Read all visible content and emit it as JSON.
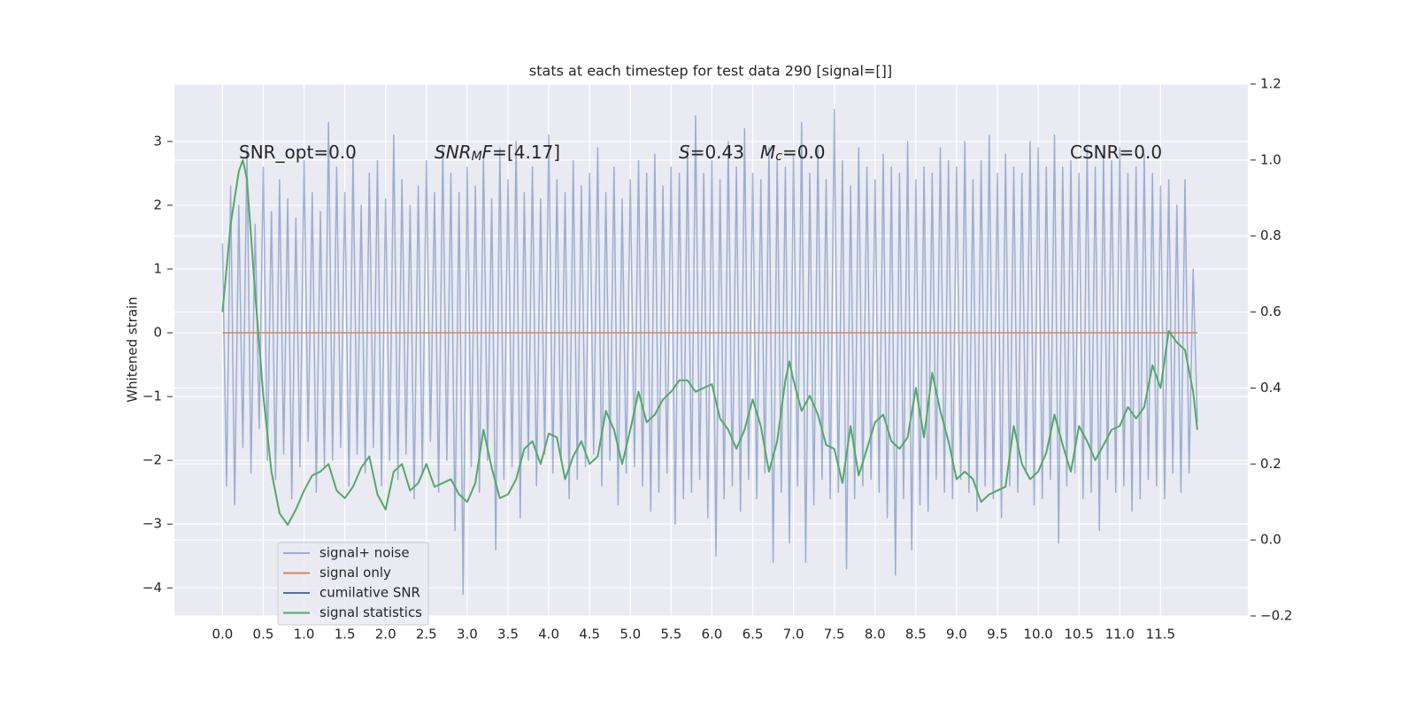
{
  "chart_data": {
    "type": "line",
    "title": "stats at each timestep for test data 290 [signal=[]]",
    "ylabel": "Whitened strain",
    "grid": true,
    "legend": "lower left",
    "xlim": [
      -0.59,
      12.57
    ],
    "ylim": [
      -4.44,
      3.9
    ],
    "y2lim": [
      -0.2,
      1.2
    ],
    "xticks": [
      {
        "value": 0,
        "label": "0.0"
      },
      {
        "value": 0.5,
        "label": "0.5"
      },
      {
        "value": 1,
        "label": "1.0"
      },
      {
        "value": 1.5,
        "label": "1.5"
      },
      {
        "value": 2,
        "label": "2.0"
      },
      {
        "value": 2.5,
        "label": "2.5"
      },
      {
        "value": 3,
        "label": "3.0"
      },
      {
        "value": 3.5,
        "label": "3.5"
      },
      {
        "value": 4,
        "label": "4.0"
      },
      {
        "value": 4.5,
        "label": "4.5"
      },
      {
        "value": 5,
        "label": "5.0"
      },
      {
        "value": 5.5,
        "label": "5.5"
      },
      {
        "value": 6,
        "label": "6.0"
      },
      {
        "value": 6.5,
        "label": "6.5"
      },
      {
        "value": 7,
        "label": "7.0"
      },
      {
        "value": 7.5,
        "label": "7.5"
      },
      {
        "value": 8,
        "label": "8.0"
      },
      {
        "value": 8.5,
        "label": "8.5"
      },
      {
        "value": 9,
        "label": "9.0"
      },
      {
        "value": 9.5,
        "label": "9.5"
      },
      {
        "value": 10,
        "label": "10.0"
      },
      {
        "value": 10.5,
        "label": "10.5"
      },
      {
        "value": 11,
        "label": "11.0"
      },
      {
        "value": 11.5,
        "label": "11.5"
      }
    ],
    "yticks": [
      {
        "value": -4,
        "label": "−4"
      },
      {
        "value": -3,
        "label": "−3"
      },
      {
        "value": -2,
        "label": "−2"
      },
      {
        "value": -1,
        "label": "−1"
      },
      0,
      1,
      2,
      3
    ],
    "y2ticks": [
      {
        "value": -0.2,
        "label": "−0.2"
      },
      {
        "value": 0,
        "label": "0.0"
      },
      {
        "value": 0.2,
        "label": "0.2"
      },
      {
        "value": 0.4,
        "label": "0.4"
      },
      {
        "value": 0.6,
        "label": "0.6"
      },
      {
        "value": 0.8,
        "label": "0.8"
      },
      {
        "value": 1,
        "label": "1.0"
      },
      {
        "value": 1.2,
        "label": "1.2"
      }
    ],
    "annotations": [
      [
        {
          "text": "SNR_opt=0.0",
          "style": "normal"
        }
      ],
      [
        {
          "text": "SNR",
          "style": "italic"
        },
        {
          "text": "M",
          "style": "italic-sub"
        },
        {
          "text": "F",
          "style": "italic"
        },
        {
          "text": "=[4.17]",
          "style": "normal"
        }
      ],
      [
        {
          "text": "S",
          "style": "italic"
        },
        {
          "text": "=0.43",
          "style": "normal"
        }
      ],
      [
        {
          "text": "M",
          "style": "italic"
        },
        {
          "text": "c",
          "style": "italic-sub"
        },
        {
          "text": "=0.0",
          "style": "normal"
        }
      ],
      [
        {
          "text": "CSNR=0.0",
          "style": "normal"
        }
      ]
    ],
    "series": [
      {
        "name": "signal+ noise",
        "color": "#4c72b0",
        "alpha": 0.5,
        "x": [
          0,
          0.05,
          0.1,
          0.15,
          0.2,
          0.25,
          0.3,
          0.35,
          0.4,
          0.45,
          0.5,
          0.55,
          0.6,
          0.65,
          0.7,
          0.75,
          0.8,
          0.85,
          0.9,
          0.95,
          1,
          1.05,
          1.1,
          1.15,
          1.2,
          1.25,
          1.3,
          1.35,
          1.4,
          1.45,
          1.5,
          1.55,
          1.6,
          1.65,
          1.7,
          1.75,
          1.8,
          1.85,
          1.9,
          1.95,
          2,
          2.05,
          2.1,
          2.15,
          2.2,
          2.25,
          2.3,
          2.35,
          2.4,
          2.45,
          2.5,
          2.55,
          2.6,
          2.65,
          2.7,
          2.75,
          2.8,
          2.85,
          2.9,
          2.95,
          3,
          3.05,
          3.1,
          3.15,
          3.2,
          3.25,
          3.3,
          3.35,
          3.4,
          3.45,
          3.5,
          3.55,
          3.6,
          3.65,
          3.7,
          3.75,
          3.8,
          3.85,
          3.9,
          3.95,
          4,
          4.05,
          4.1,
          4.15,
          4.2,
          4.25,
          4.3,
          4.35,
          4.4,
          4.45,
          4.5,
          4.55,
          4.6,
          4.65,
          4.7,
          4.75,
          4.8,
          4.85,
          4.9,
          4.95,
          5,
          5.05,
          5.1,
          5.15,
          5.2,
          5.25,
          5.3,
          5.35,
          5.4,
          5.45,
          5.5,
          5.55,
          5.6,
          5.65,
          5.7,
          5.75,
          5.8,
          5.85,
          5.9,
          5.95,
          6,
          6.05,
          6.1,
          6.15,
          6.2,
          6.25,
          6.3,
          6.35,
          6.4,
          6.45,
          6.5,
          6.55,
          6.6,
          6.65,
          6.7,
          6.75,
          6.8,
          6.85,
          6.9,
          6.95,
          7,
          7.05,
          7.1,
          7.15,
          7.2,
          7.25,
          7.3,
          7.35,
          7.4,
          7.45,
          7.5,
          7.55,
          7.6,
          7.65,
          7.7,
          7.75,
          7.8,
          7.85,
          7.9,
          7.95,
          8,
          8.05,
          8.1,
          8.15,
          8.2,
          8.25,
          8.3,
          8.35,
          8.4,
          8.45,
          8.5,
          8.55,
          8.6,
          8.65,
          8.7,
          8.75,
          8.8,
          8.85,
          8.9,
          8.95,
          9,
          9.05,
          9.1,
          9.15,
          9.2,
          9.25,
          9.3,
          9.35,
          9.4,
          9.45,
          9.5,
          9.55,
          9.6,
          9.65,
          9.7,
          9.75,
          9.8,
          9.85,
          9.9,
          9.95,
          10,
          10.05,
          10.1,
          10.15,
          10.2,
          10.25,
          10.3,
          10.35,
          10.4,
          10.45,
          10.5,
          10.55,
          10.6,
          10.65,
          10.7,
          10.75,
          10.8,
          10.85,
          10.9,
          10.95,
          11,
          11.05,
          11.1,
          11.15,
          11.2,
          11.25,
          11.3,
          11.35,
          11.4,
          11.45,
          11.5,
          11.55,
          11.6,
          11.65,
          11.7,
          11.75,
          11.8,
          11.85,
          11.9,
          11.95
        ],
        "values": [
          1.4,
          -2.4,
          2.3,
          -2.7,
          2.0,
          -1.8,
          2.9,
          -2.2,
          1.7,
          -1.5,
          2.6,
          -2.0,
          1.9,
          -2.3,
          2.4,
          -1.9,
          2.1,
          -2.6,
          1.8,
          -2.1,
          2.7,
          -1.7,
          2.2,
          -2.5,
          1.9,
          -2.1,
          3.3,
          -2.0,
          2.6,
          -1.8,
          2.2,
          -2.4,
          2.8,
          -1.9,
          2.0,
          -2.2,
          2.5,
          -1.8,
          2.7,
          -2.4,
          2.1,
          -2.0,
          3.1,
          -2.3,
          2.4,
          -1.9,
          2.0,
          -2.6,
          2.3,
          -2.2,
          2.7,
          -1.7,
          2.2,
          -2.5,
          2.9,
          -2.0,
          2.5,
          -3.1,
          2.2,
          -4.1,
          2.6,
          -2.1,
          2.3,
          -2.5,
          2.8,
          -2.0,
          2.1,
          -3.4,
          2.9,
          -2.3,
          2.4,
          -2.1,
          3.0,
          -2.9,
          2.2,
          -2.0,
          2.6,
          -2.4,
          2.1,
          -1.9,
          3.1,
          -2.2,
          2.4,
          -2.0,
          2.2,
          -2.6,
          2.7,
          -2.3,
          2.3,
          -2.1,
          2.5,
          -1.9,
          2.9,
          -2.4,
          2.2,
          -2.0,
          2.6,
          -2.7,
          2.1,
          -2.2,
          2.4,
          -2.1,
          2.7,
          -2.4,
          2.5,
          -2.8,
          2.8,
          -2.5,
          2.3,
          -2.2,
          2.6,
          -3.0,
          2.5,
          -2.6,
          2.9,
          -2.5,
          3.4,
          -2.3,
          2.5,
          -2.9,
          2.7,
          -3.5,
          2.4,
          -2.6,
          3.0,
          -2.4,
          2.6,
          -2.8,
          3.2,
          -2.3,
          2.5,
          -2.6,
          2.4,
          -2.2,
          2.9,
          -3.6,
          2.7,
          -2.5,
          2.6,
          -3.3,
          2.8,
          -2.4,
          3.3,
          -3.6,
          2.5,
          -2.7,
          2.9,
          -2.3,
          2.4,
          -2.6,
          3.5,
          -2.5,
          2.7,
          -3.7,
          2.3,
          -2.6,
          2.9,
          -2.4,
          2.6,
          -2.3,
          2.4,
          -2.5,
          2.8,
          -2.9,
          2.6,
          -3.8,
          2.5,
          -2.6,
          3.0,
          -3.4,
          2.4,
          -2.7,
          2.6,
          -2.8,
          2.5,
          -2.3,
          2.9,
          -2.5,
          2.7,
          -2.6,
          2.6,
          -2.3,
          3.0,
          -2.5,
          2.4,
          -2.8,
          2.7,
          -2.4,
          3.1,
          -2.6,
          2.5,
          -2.9,
          2.8,
          -2.4,
          2.6,
          -2.5,
          2.5,
          -2.2,
          3.0,
          -2.7,
          2.9,
          -2.6,
          2.6,
          -2.3,
          3.1,
          -3.3,
          2.6,
          -2.4,
          2.7,
          -2.2,
          2.5,
          -2.6,
          2.9,
          -2.5,
          2.6,
          -3.1,
          2.8,
          -2.3,
          2.7,
          -2.5,
          2.9,
          -2.4,
          2.5,
          -2.8,
          2.6,
          -2.6,
          2.8,
          -2.3,
          2.5,
          -2.4,
          2.3,
          -2.6,
          2.4,
          -2.2,
          2.0,
          -2.5,
          2.4,
          -2.2,
          1.0,
          -1.4
        ]
      },
      {
        "name": "signal only",
        "color": "#dd8452",
        "x": [
          0,
          11.95
        ],
        "values": [
          0,
          0
        ]
      },
      {
        "name": "cumilative SNR",
        "color": "#4c72b0",
        "x": [],
        "values": []
      },
      {
        "name": "signal statistics",
        "color": "#55a868",
        "axis": "y2",
        "x": [
          0,
          0.1,
          0.2,
          0.25,
          0.3,
          0.4,
          0.5,
          0.6,
          0.7,
          0.8,
          0.9,
          1,
          1.1,
          1.2,
          1.3,
          1.4,
          1.5,
          1.6,
          1.7,
          1.8,
          1.9,
          2,
          2.1,
          2.2,
          2.3,
          2.4,
          2.5,
          2.6,
          2.7,
          2.8,
          2.9,
          3,
          3.1,
          3.2,
          3.3,
          3.4,
          3.5,
          3.6,
          3.7,
          3.8,
          3.9,
          4,
          4.1,
          4.2,
          4.3,
          4.4,
          4.5,
          4.6,
          4.7,
          4.8,
          4.9,
          5,
          5.1,
          5.2,
          5.3,
          5.4,
          5.5,
          5.6,
          5.7,
          5.8,
          5.9,
          6,
          6.1,
          6.2,
          6.3,
          6.4,
          6.5,
          6.6,
          6.7,
          6.8,
          6.9,
          6.95,
          7,
          7.1,
          7.2,
          7.3,
          7.4,
          7.5,
          7.6,
          7.7,
          7.8,
          7.9,
          8,
          8.1,
          8.2,
          8.3,
          8.4,
          8.5,
          8.6,
          8.7,
          8.8,
          8.9,
          9,
          9.1,
          9.2,
          9.3,
          9.4,
          9.5,
          9.6,
          9.7,
          9.8,
          9.9,
          10,
          10.1,
          10.2,
          10.3,
          10.4,
          10.5,
          10.6,
          10.7,
          10.8,
          10.9,
          11,
          11.1,
          11.2,
          11.3,
          11.4,
          11.5,
          11.6,
          11.7,
          11.8,
          11.9,
          11.95
        ],
        "values": [
          0.6,
          0.83,
          0.97,
          1.0,
          0.95,
          0.65,
          0.38,
          0.18,
          0.07,
          0.04,
          0.08,
          0.13,
          0.17,
          0.18,
          0.2,
          0.13,
          0.11,
          0.14,
          0.19,
          0.22,
          0.12,
          0.08,
          0.18,
          0.2,
          0.13,
          0.15,
          0.2,
          0.14,
          0.15,
          0.16,
          0.12,
          0.1,
          0.15,
          0.29,
          0.19,
          0.11,
          0.12,
          0.16,
          0.24,
          0.26,
          0.2,
          0.28,
          0.27,
          0.16,
          0.22,
          0.26,
          0.2,
          0.22,
          0.34,
          0.29,
          0.2,
          0.29,
          0.39,
          0.31,
          0.33,
          0.37,
          0.39,
          0.42,
          0.42,
          0.39,
          0.4,
          0.41,
          0.32,
          0.29,
          0.24,
          0.29,
          0.37,
          0.3,
          0.18,
          0.26,
          0.42,
          0.47,
          0.42,
          0.34,
          0.38,
          0.33,
          0.25,
          0.24,
          0.15,
          0.3,
          0.17,
          0.24,
          0.31,
          0.33,
          0.26,
          0.24,
          0.27,
          0.4,
          0.27,
          0.44,
          0.34,
          0.26,
          0.16,
          0.18,
          0.16,
          0.1,
          0.12,
          0.13,
          0.14,
          0.3,
          0.2,
          0.16,
          0.18,
          0.23,
          0.33,
          0.25,
          0.18,
          0.3,
          0.26,
          0.21,
          0.25,
          0.29,
          0.3,
          0.35,
          0.32,
          0.35,
          0.46,
          0.4,
          0.55,
          0.52,
          0.5,
          0.39,
          0.29
        ]
      }
    ]
  }
}
